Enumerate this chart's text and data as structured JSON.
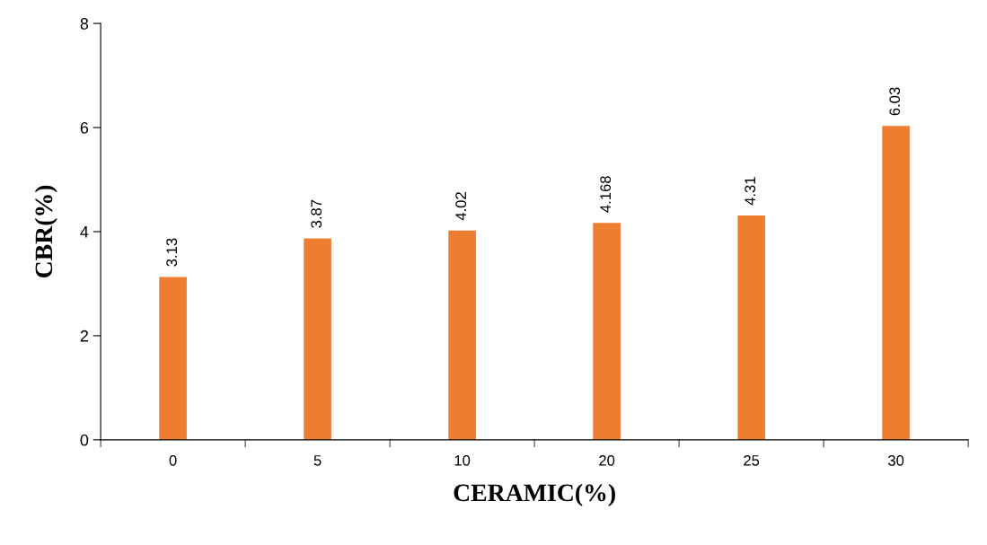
{
  "chart_data": {
    "type": "bar",
    "xlabel": "CERAMIC(%)",
    "ylabel": "CBR(%)",
    "categories": [
      "0",
      "5",
      "10",
      "20",
      "25",
      "30"
    ],
    "values": [
      3.13,
      3.87,
      4.02,
      4.168,
      4.31,
      6.03
    ],
    "color": "#ed7d31",
    "ylim": [
      0,
      8
    ],
    "yticks": [
      0,
      2,
      4,
      6,
      8
    ],
    "data_labels": true,
    "grid": false,
    "legend": false
  }
}
